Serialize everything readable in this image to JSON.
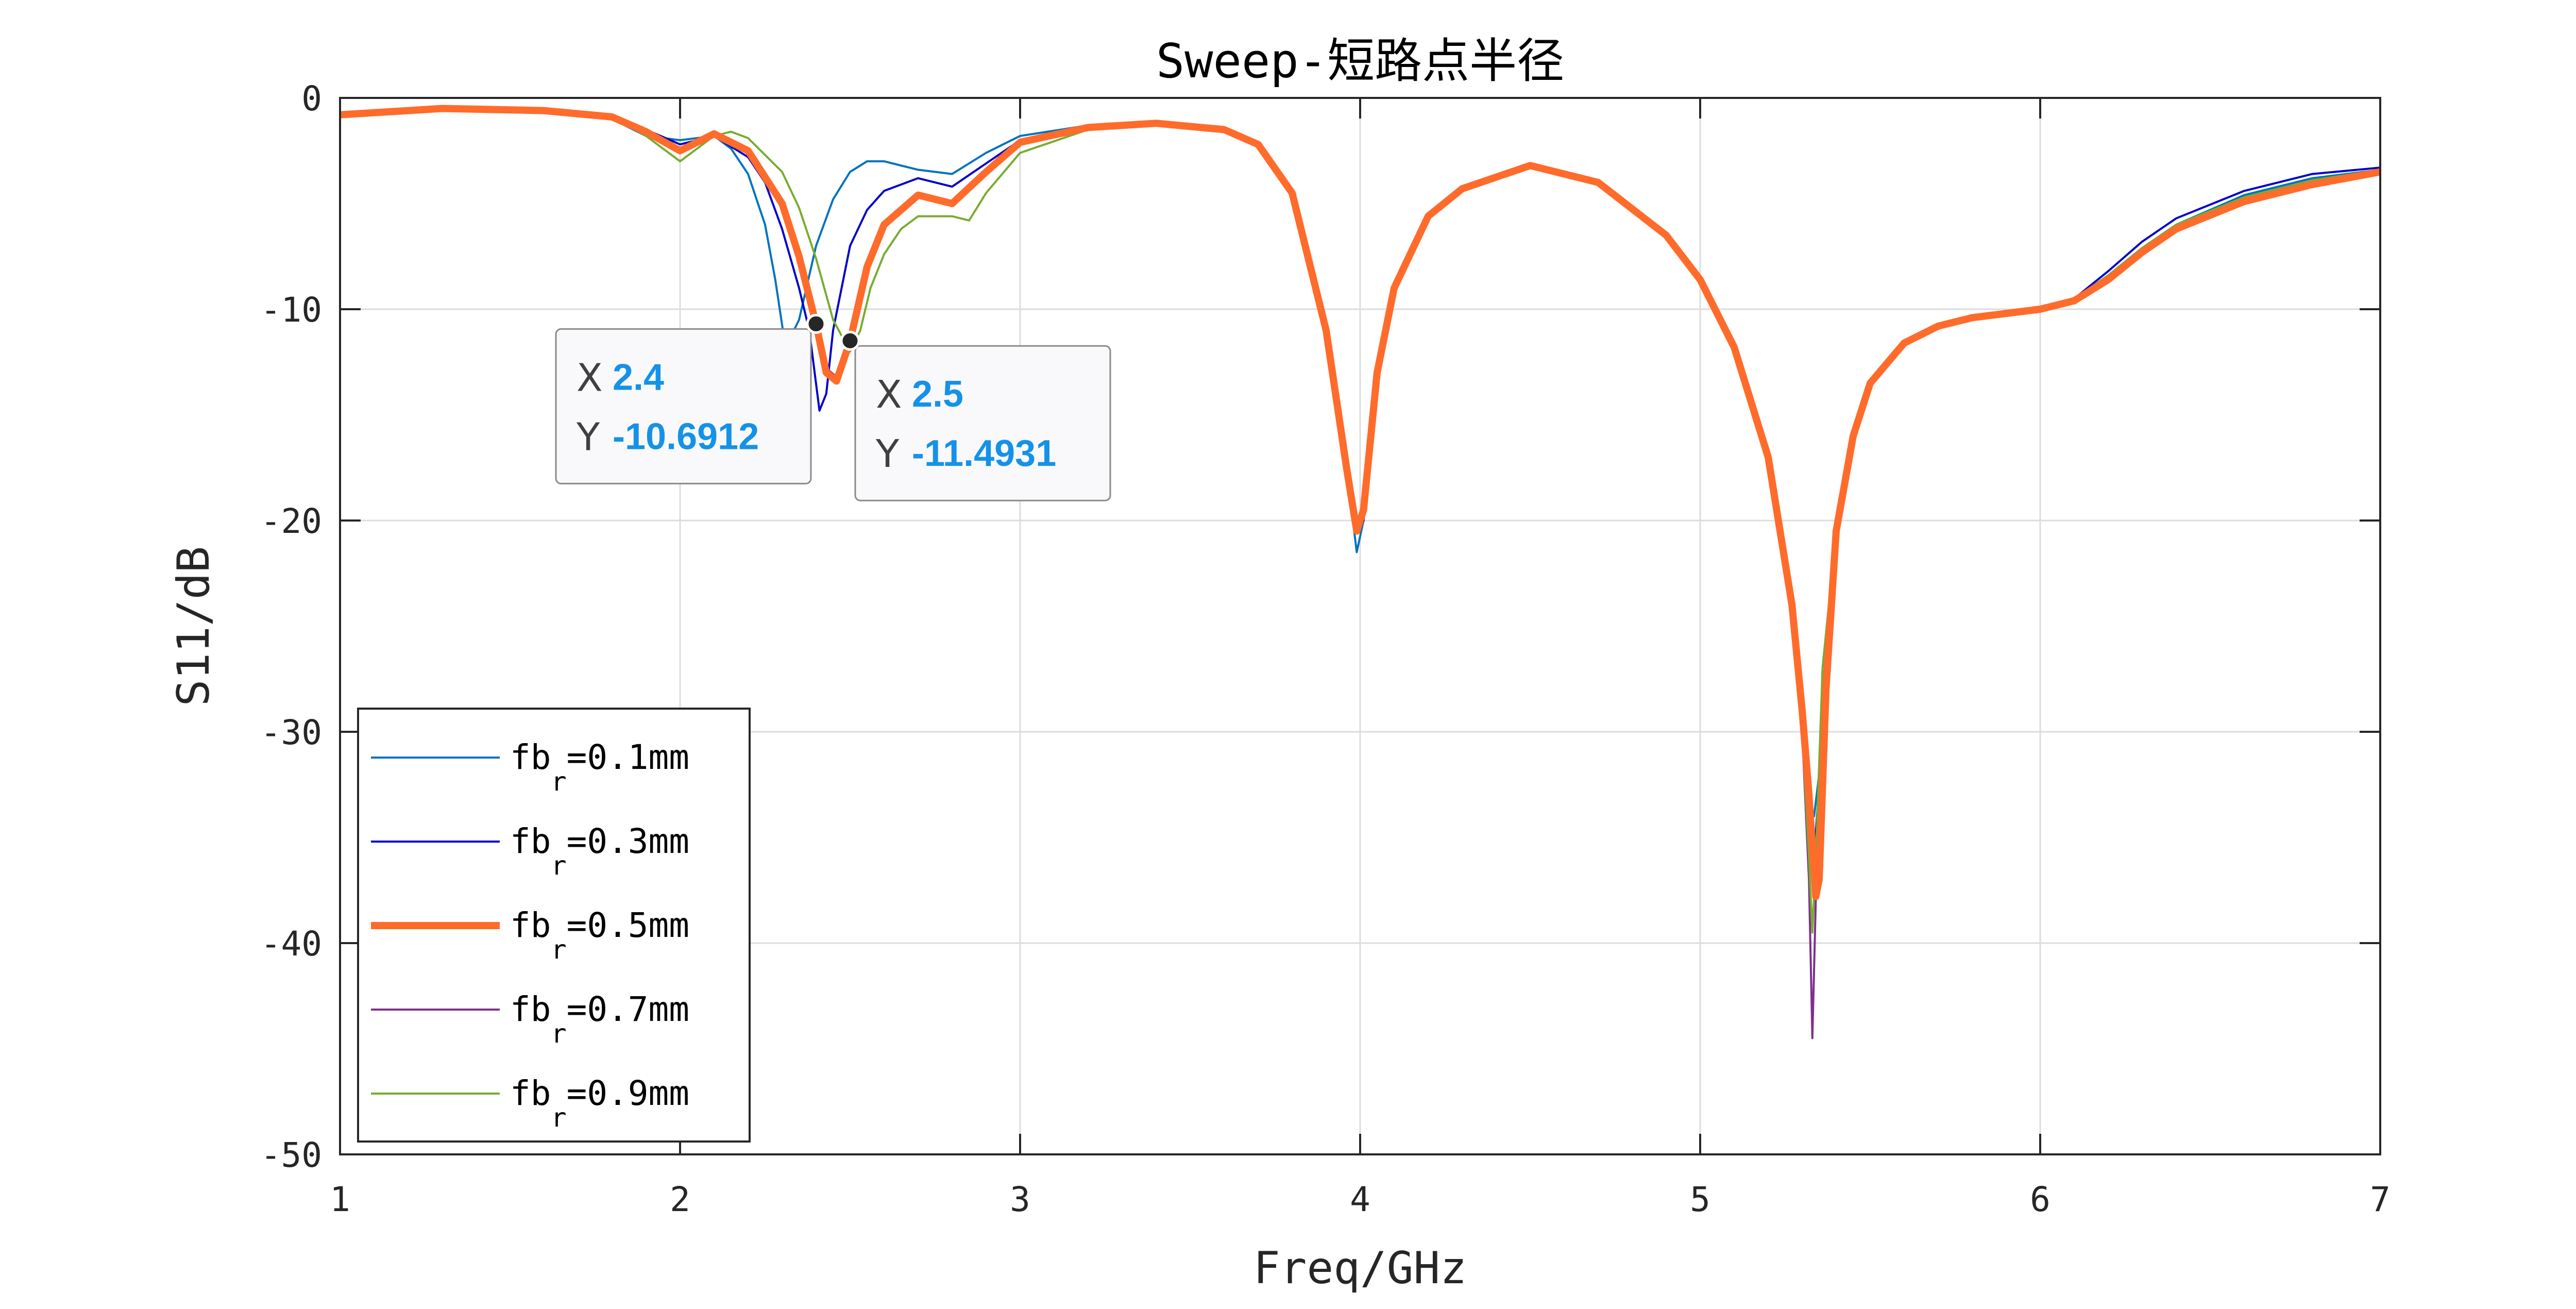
{
  "chart_data": {
    "type": "line",
    "title": "Sweep-短路点半径",
    "xlabel": "Freq/GHz",
    "ylabel": "S11/dB",
    "xlim": [
      1,
      7
    ],
    "ylim": [
      -50,
      0
    ],
    "xticks": [
      1,
      2,
      3,
      4,
      5,
      6,
      7
    ],
    "yticks": [
      0,
      -10,
      -20,
      -30,
      -40,
      -50
    ],
    "xtick_labels": [
      "1",
      "2",
      "3",
      "4",
      "5",
      "6",
      "7"
    ],
    "ytick_labels": [
      "0",
      "-10",
      "-20",
      "-30",
      "-40",
      "-50"
    ],
    "grid": true,
    "legend_position": "bottom-left",
    "series": [
      {
        "name": "fb_r=0.1mm",
        "legend_base": "fb",
        "legend_sub": "r",
        "legend_rest": "=0.1mm",
        "color": "#0072BD",
        "width": 4,
        "x": [
          1.0,
          1.3,
          1.6,
          1.8,
          1.9,
          2.0,
          2.1,
          2.15,
          2.2,
          2.25,
          2.28,
          2.31,
          2.35,
          2.4,
          2.45,
          2.5,
          2.55,
          2.6,
          2.7,
          2.8,
          2.9,
          3.0,
          3.2,
          3.4,
          3.6,
          3.7,
          3.8,
          3.9,
          3.96,
          3.99,
          4.01,
          4.05,
          4.1,
          4.2,
          4.3,
          4.5,
          4.7,
          4.9,
          5.0,
          5.1,
          5.2,
          5.27,
          5.3,
          5.32,
          5.335,
          5.35,
          5.37,
          5.4,
          5.45,
          5.5,
          5.6,
          5.7,
          5.8,
          5.9,
          6.0,
          6.1,
          6.2,
          6.3,
          6.4,
          6.6,
          6.8,
          7.0
        ],
        "y": [
          -0.8,
          -0.5,
          -0.6,
          -1.0,
          -1.8,
          -2.0,
          -1.8,
          -2.4,
          -3.6,
          -6.0,
          -8.6,
          -11.8,
          -10.5,
          -7.0,
          -4.8,
          -3.5,
          -3.0,
          -3.0,
          -3.4,
          -3.6,
          -2.6,
          -1.8,
          -1.3,
          -1.2,
          -1.5,
          -2.2,
          -4.5,
          -11.0,
          -17.5,
          -21.5,
          -20.0,
          -13.0,
          -9.0,
          -5.6,
          -4.3,
          -3.2,
          -4.0,
          -6.5,
          -8.6,
          -11.8,
          -17.0,
          -24.0,
          -29.0,
          -33.5,
          -34.0,
          -32.0,
          -26.0,
          -20.0,
          -16.0,
          -13.5,
          -11.6,
          -10.8,
          -10.4,
          -10.2,
          -10.0,
          -9.5,
          -8.4,
          -7.1,
          -6.0,
          -4.6,
          -3.8,
          -3.4
        ]
      },
      {
        "name": "fb_r=0.3mm",
        "legend_base": "fb",
        "legend_sub": "r",
        "legend_rest": "=0.3mm",
        "color": "#0000CC",
        "width": 4,
        "x": [
          1.0,
          1.3,
          1.6,
          1.8,
          1.9,
          2.0,
          2.1,
          2.2,
          2.25,
          2.3,
          2.35,
          2.38,
          2.41,
          2.43,
          2.45,
          2.5,
          2.55,
          2.6,
          2.7,
          2.8,
          2.9,
          3.0,
          3.2,
          3.4,
          3.6,
          3.7,
          3.8,
          3.9,
          3.96,
          3.99,
          4.01,
          4.05,
          4.1,
          4.2,
          4.3,
          4.5,
          4.7,
          4.9,
          5.0,
          5.1,
          5.2,
          5.27,
          5.3,
          5.32,
          5.335,
          5.35,
          5.37,
          5.4,
          5.45,
          5.5,
          5.6,
          5.7,
          5.8,
          5.9,
          6.0,
          6.1,
          6.2,
          6.3,
          6.4,
          6.6,
          6.8,
          7.0
        ],
        "y": [
          -0.8,
          -0.5,
          -0.6,
          -0.8,
          -1.5,
          -2.2,
          -1.8,
          -2.8,
          -4.0,
          -6.2,
          -9.0,
          -11.0,
          -14.8,
          -14.0,
          -11.0,
          -7.0,
          -5.3,
          -4.4,
          -3.8,
          -4.2,
          -3.1,
          -2.0,
          -1.4,
          -1.2,
          -1.5,
          -2.2,
          -4.5,
          -11.0,
          -17.5,
          -20.5,
          -20.0,
          -13.0,
          -9.0,
          -5.6,
          -4.3,
          -3.2,
          -4.0,
          -6.5,
          -8.6,
          -11.8,
          -17.0,
          -24.0,
          -29.0,
          -33.5,
          -36.0,
          -32.5,
          -26.0,
          -20.0,
          -16.0,
          -13.5,
          -11.6,
          -10.8,
          -10.4,
          -10.2,
          -10.0,
          -9.5,
          -8.2,
          -6.8,
          -5.7,
          -4.4,
          -3.6,
          -3.3
        ]
      },
      {
        "name": "fb_r=0.5mm",
        "legend_base": "fb",
        "legend_sub": "r",
        "legend_rest": "=0.5mm",
        "color": "#FF6B2B",
        "width": 14,
        "x": [
          1.0,
          1.3,
          1.6,
          1.8,
          1.9,
          2.0,
          2.1,
          2.2,
          2.3,
          2.35,
          2.4,
          2.43,
          2.46,
          2.5,
          2.55,
          2.6,
          2.7,
          2.8,
          2.9,
          3.0,
          3.2,
          3.4,
          3.6,
          3.7,
          3.8,
          3.9,
          3.96,
          3.99,
          4.01,
          4.05,
          4.1,
          4.2,
          4.3,
          4.5,
          4.7,
          4.9,
          5.0,
          5.1,
          5.2,
          5.27,
          5.3,
          5.32,
          5.34,
          5.35,
          5.37,
          5.4,
          5.45,
          5.5,
          5.6,
          5.7,
          5.8,
          5.9,
          6.0,
          6.1,
          6.2,
          6.3,
          6.4,
          6.6,
          6.8,
          7.0
        ],
        "y": [
          -0.8,
          -0.5,
          -0.6,
          -0.9,
          -1.6,
          -2.5,
          -1.7,
          -2.5,
          -5.0,
          -7.5,
          -10.7,
          -13.0,
          -13.4,
          -11.5,
          -8.0,
          -6.0,
          -4.6,
          -5.0,
          -3.5,
          -2.1,
          -1.4,
          -1.2,
          -1.5,
          -2.2,
          -4.5,
          -11.0,
          -17.5,
          -20.5,
          -19.5,
          -13.0,
          -9.0,
          -5.6,
          -4.3,
          -3.2,
          -4.0,
          -6.5,
          -8.6,
          -11.8,
          -17.0,
          -24.0,
          -29.0,
          -33.0,
          -37.8,
          -37.0,
          -28.0,
          -20.5,
          -16.0,
          -13.5,
          -11.6,
          -10.8,
          -10.4,
          -10.2,
          -10.0,
          -9.6,
          -8.6,
          -7.3,
          -6.2,
          -4.9,
          -4.1,
          -3.5
        ]
      },
      {
        "name": "fb_r=0.7mm",
        "legend_base": "fb",
        "legend_sub": "r",
        "legend_rest": "=0.7mm",
        "color": "#7E2F8E",
        "width": 4,
        "x": [
          1.0,
          1.3,
          1.6,
          1.8,
          1.9,
          2.0,
          2.1,
          2.2,
          2.3,
          2.35,
          2.4,
          2.43,
          2.46,
          2.5,
          2.55,
          2.6,
          2.7,
          2.8,
          2.9,
          3.0,
          3.2,
          3.4,
          3.6,
          3.7,
          3.8,
          3.9,
          3.96,
          3.99,
          4.01,
          4.05,
          4.1,
          4.2,
          4.3,
          4.5,
          4.7,
          4.9,
          5.0,
          5.1,
          5.2,
          5.27,
          5.3,
          5.32,
          5.33,
          5.34,
          5.36,
          5.4,
          5.45,
          5.5,
          5.6,
          5.7,
          5.8,
          5.9,
          6.0,
          6.1,
          6.2,
          6.3,
          6.4,
          6.6,
          6.8,
          7.0
        ],
        "y": [
          -0.8,
          -0.5,
          -0.6,
          -0.9,
          -1.6,
          -2.5,
          -1.7,
          -2.5,
          -5.0,
          -7.5,
          -10.5,
          -12.8,
          -13.2,
          -11.3,
          -7.8,
          -5.9,
          -4.5,
          -4.9,
          -3.4,
          -2.1,
          -1.4,
          -1.2,
          -1.5,
          -2.2,
          -4.5,
          -11.0,
          -17.5,
          -20.3,
          -19.5,
          -13.0,
          -9.0,
          -5.6,
          -4.3,
          -3.2,
          -4.0,
          -6.5,
          -8.6,
          -11.8,
          -17.0,
          -24.0,
          -30.0,
          -37.0,
          -44.5,
          -38.0,
          -27.0,
          -20.5,
          -16.0,
          -13.5,
          -11.6,
          -10.8,
          -10.4,
          -10.2,
          -10.0,
          -9.6,
          -8.6,
          -7.3,
          -6.2,
          -4.9,
          -4.1,
          -3.5
        ]
      },
      {
        "name": "fb_r=0.9mm",
        "legend_base": "fb",
        "legend_sub": "r",
        "legend_rest": "=0.9mm",
        "color": "#77AC30",
        "width": 4,
        "x": [
          1.0,
          1.3,
          1.6,
          1.8,
          1.9,
          2.0,
          2.1,
          2.15,
          2.2,
          2.3,
          2.35,
          2.4,
          2.45,
          2.5,
          2.53,
          2.56,
          2.6,
          2.65,
          2.7,
          2.8,
          2.85,
          2.9,
          3.0,
          3.2,
          3.4,
          3.6,
          3.7,
          3.8,
          3.9,
          3.96,
          3.99,
          4.01,
          4.05,
          4.1,
          4.2,
          4.3,
          4.5,
          4.7,
          4.9,
          5.0,
          5.1,
          5.2,
          5.27,
          5.3,
          5.32,
          5.33,
          5.34,
          5.36,
          5.4,
          5.45,
          5.5,
          5.6,
          5.7,
          5.8,
          5.9,
          6.0,
          6.1,
          6.2,
          6.3,
          6.4,
          6.6,
          6.8,
          7.0
        ],
        "y": [
          -0.8,
          -0.5,
          -0.6,
          -0.9,
          -1.8,
          -3.0,
          -1.8,
          -1.6,
          -1.9,
          -3.5,
          -5.2,
          -7.6,
          -10.5,
          -12.0,
          -11.0,
          -9.0,
          -7.4,
          -6.2,
          -5.6,
          -5.6,
          -5.8,
          -4.5,
          -2.6,
          -1.5,
          -1.3,
          -1.5,
          -2.2,
          -4.5,
          -11.0,
          -17.5,
          -20.3,
          -19.5,
          -13.0,
          -9.0,
          -5.6,
          -4.3,
          -3.2,
          -4.0,
          -6.5,
          -8.6,
          -11.8,
          -17.0,
          -24.0,
          -30.0,
          -36.0,
          -39.5,
          -36.0,
          -27.0,
          -20.5,
          -16.0,
          -13.5,
          -11.6,
          -10.8,
          -10.4,
          -10.2,
          -10.0,
          -9.5,
          -8.4,
          -7.1,
          -6.0,
          -4.7,
          -3.9,
          -3.4
        ]
      }
    ],
    "datatips": [
      {
        "x_key": "X",
        "x_value": "2.4",
        "y_key": "Y",
        "y_value": "-10.6912",
        "x": 2.4,
        "y": -10.6912,
        "box": "left"
      },
      {
        "x_key": "X",
        "x_value": "2.5",
        "y_key": "Y",
        "y_value": "-11.4931",
        "x": 2.5,
        "y": -11.4931,
        "box": "right"
      }
    ]
  }
}
